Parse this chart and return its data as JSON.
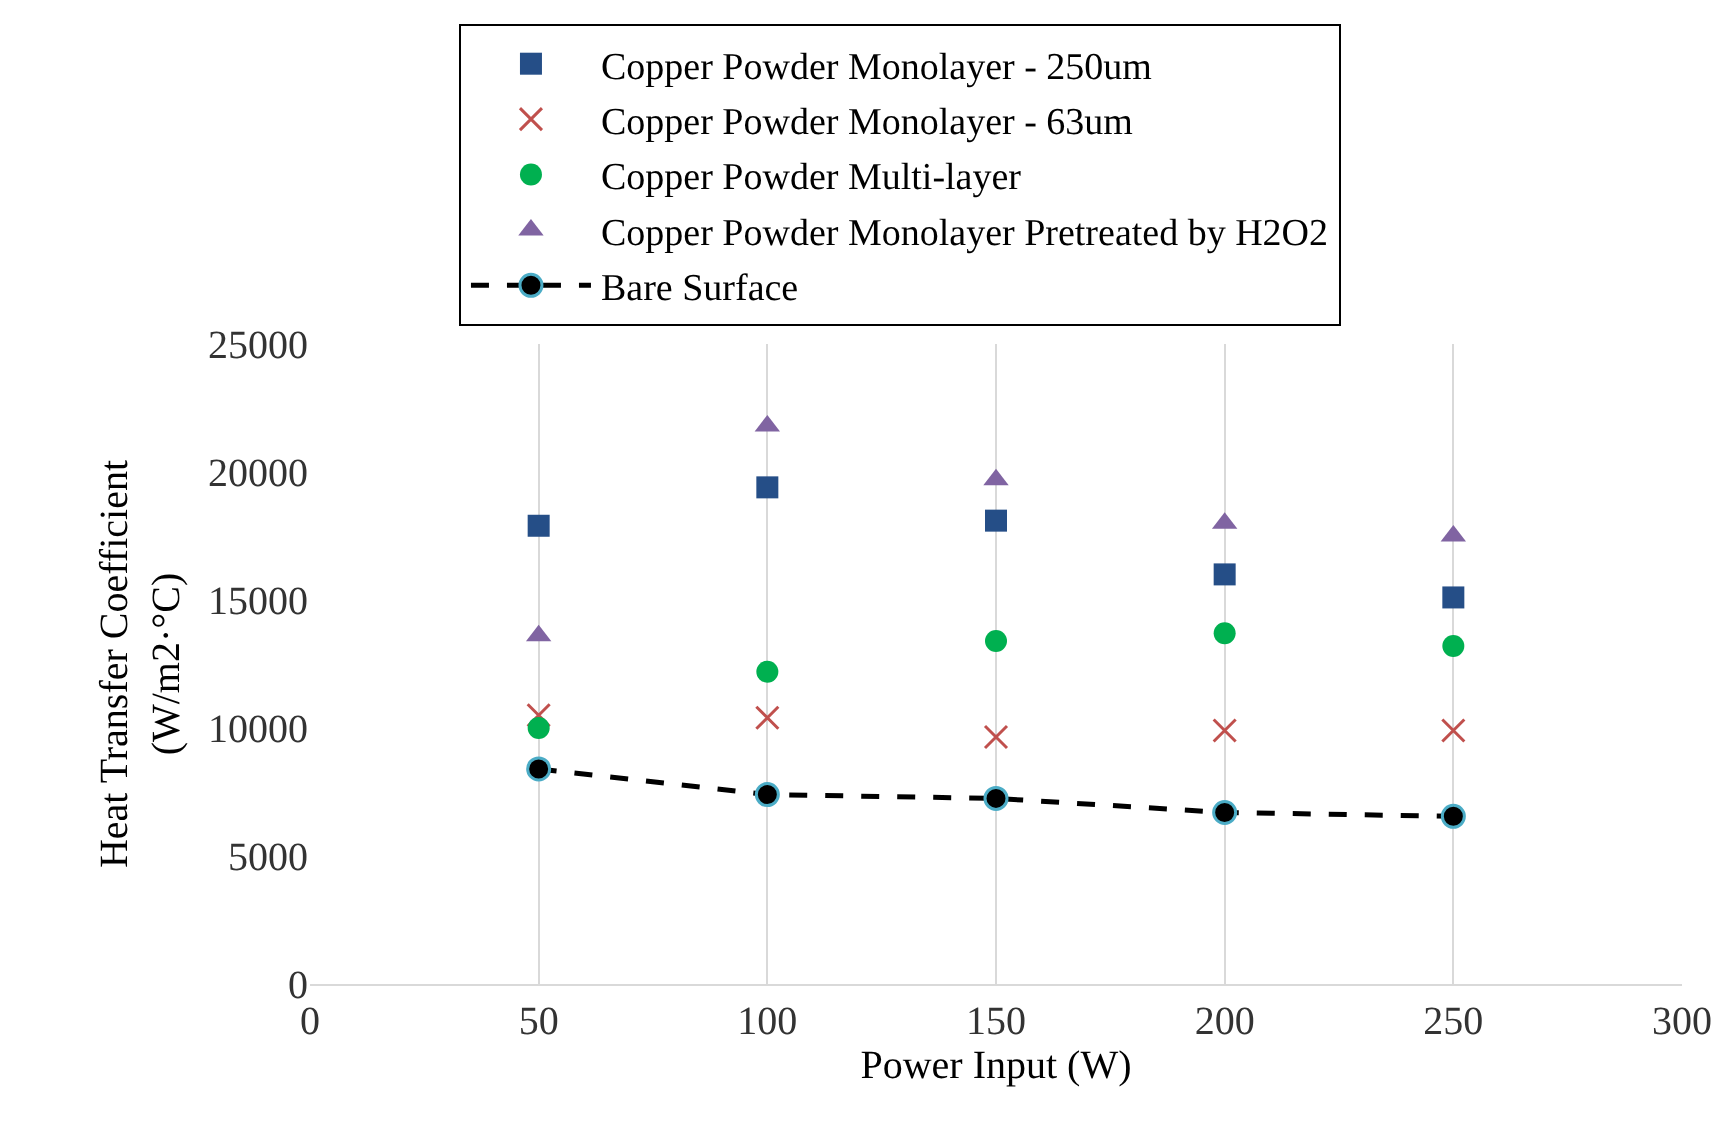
{
  "chart_data": {
    "type": "scatter",
    "xlabel": "Power Input (W)",
    "ylabel": "Heat Transfer Coefficient\n(W/m2·°C)",
    "x": [
      50,
      100,
      150,
      200,
      250
    ],
    "series": [
      {
        "name": "Copper Powder Monolayer - 250um",
        "color": "#254e87",
        "marker": "square",
        "values": [
          17900,
          19400,
          18100,
          16000,
          15100
        ]
      },
      {
        "name": "Copper Powder Monolayer - 63um",
        "color": "#c0504d",
        "marker": "cross",
        "values": [
          10500,
          10400,
          9650,
          9900,
          9900
        ]
      },
      {
        "name": "Copper Powder Multi-layer",
        "color": "#00b050",
        "marker": "circle",
        "values": [
          10000,
          12200,
          13400,
          13700,
          13200
        ]
      },
      {
        "name": "Copper Powder Monolayer Pretreated by H2O2",
        "color": "#8064a2",
        "marker": "triangle",
        "values": [
          13600,
          21800,
          19700,
          18000,
          17500
        ]
      },
      {
        "name": "Bare Surface",
        "type": "line",
        "color": "#000000",
        "marker": "circle",
        "line_style": "dashed",
        "values": [
          8400,
          7400,
          7250,
          6700,
          6550
        ]
      }
    ],
    "xlim": [
      0,
      300
    ],
    "xticks": [
      0,
      50,
      100,
      150,
      200,
      250,
      300
    ],
    "ylim": [
      0,
      25000
    ],
    "yticks": [
      0,
      5000,
      10000,
      15000,
      20000,
      25000
    ],
    "grid": "x",
    "legend": "top"
  }
}
